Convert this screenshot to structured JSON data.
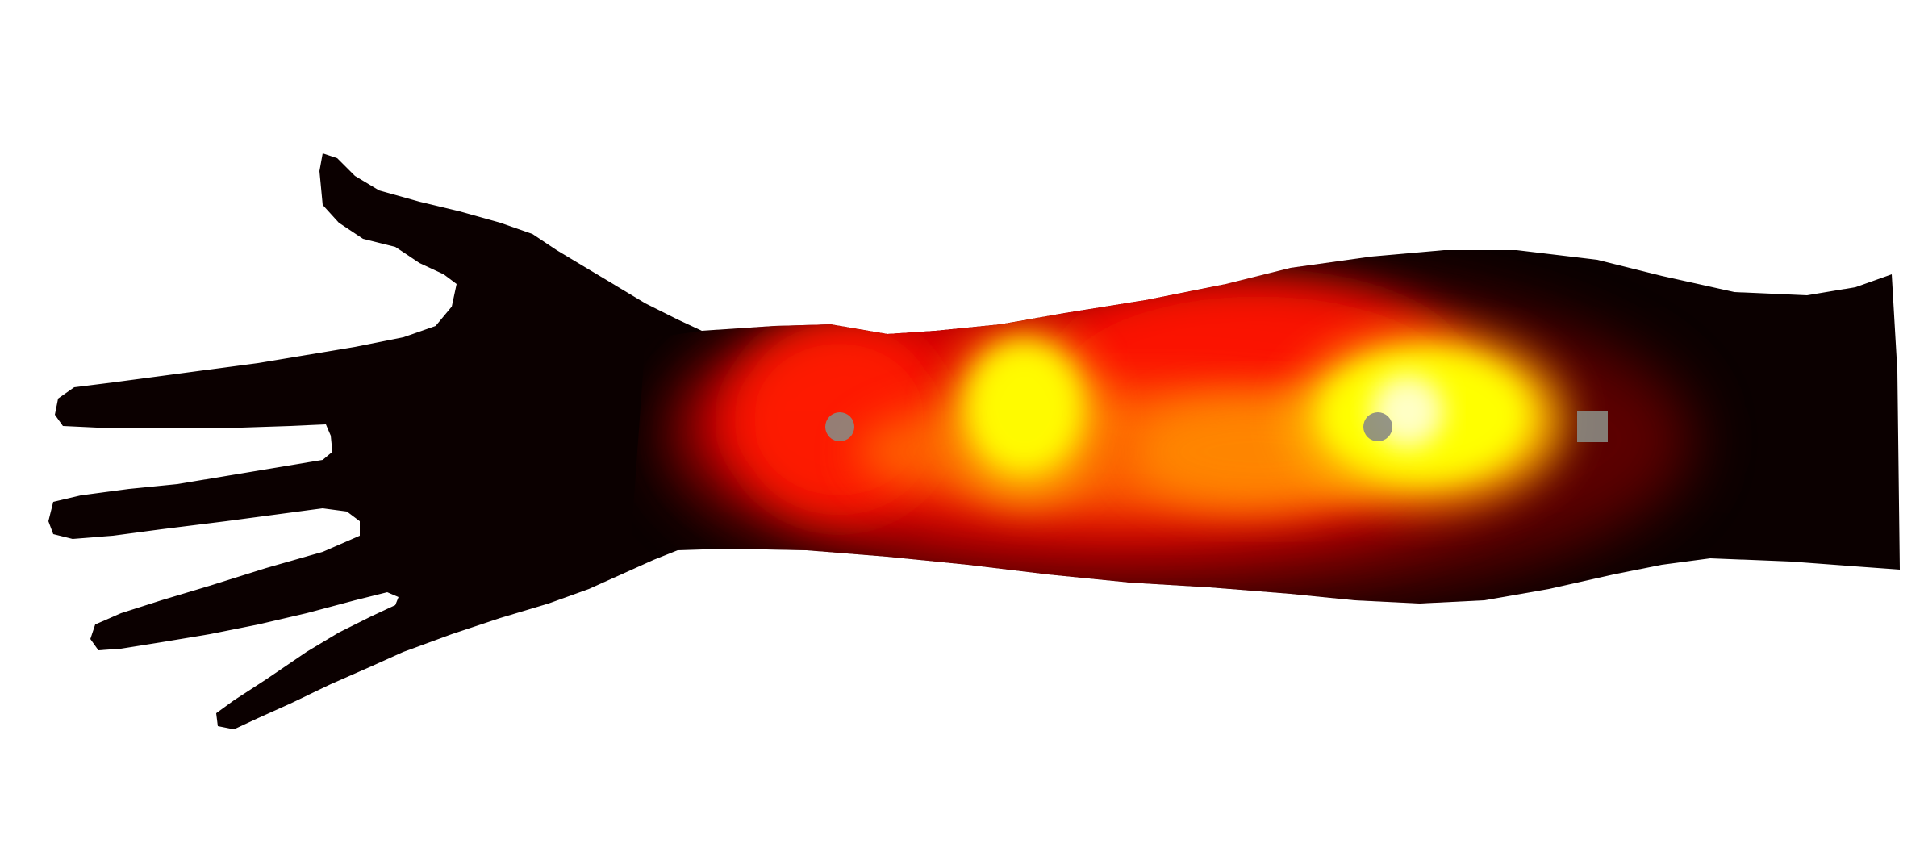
{
  "figure": {
    "background": "#ffffff",
    "silhouette_color": "#0b0000",
    "marker_color": "#8a8a82",
    "heatmap_colors": [
      "#2a0000",
      "#8b0000",
      "#e00000",
      "#ff2a00",
      "#ff7a00",
      "#ffd000",
      "#ffff00",
      "#ffffff"
    ],
    "markers": [
      {
        "name": "electrode-marker",
        "shape": "circle"
      },
      {
        "name": "electrode-marker",
        "shape": "circle"
      },
      {
        "name": "reference-marker",
        "shape": "square"
      }
    ]
  }
}
